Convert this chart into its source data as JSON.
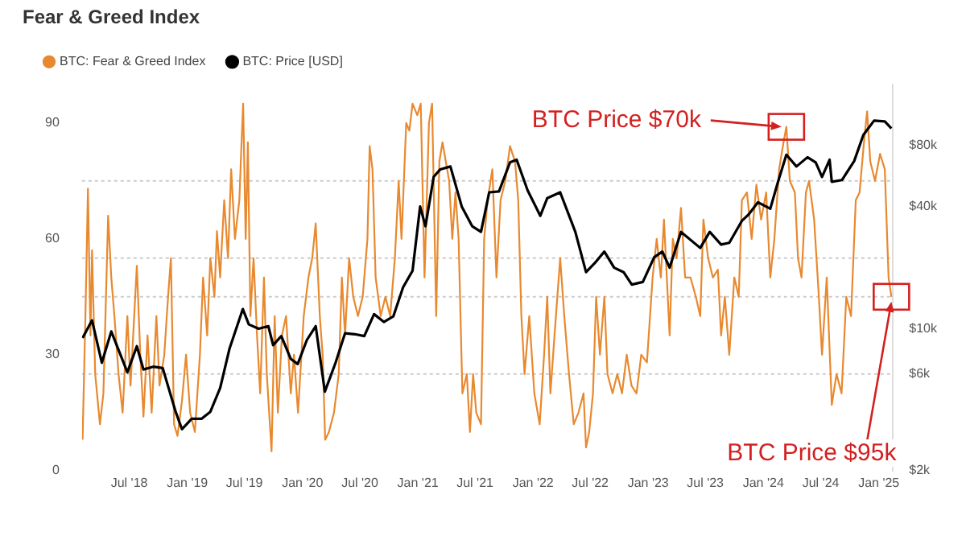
{
  "chart_data": {
    "type": "line",
    "title": "Fear & Greed Index",
    "legend": "top left",
    "marker": "none",
    "log": "y2",
    "grid": false,
    "xlim": [
      "2018-02-01",
      "2025-02-15"
    ],
    "xticks": [
      {
        "value": "2018-07-01",
        "label": "Jul '18"
      },
      {
        "value": "2019-01-01",
        "label": "Jan '19"
      },
      {
        "value": "2019-07-01",
        "label": "Jul '19"
      },
      {
        "value": "2020-01-01",
        "label": "Jan '20"
      },
      {
        "value": "2020-07-01",
        "label": "Jul '20"
      },
      {
        "value": "2021-01-01",
        "label": "Jan '21"
      },
      {
        "value": "2021-07-01",
        "label": "Jul '21"
      },
      {
        "value": "2022-01-01",
        "label": "Jan '22"
      },
      {
        "value": "2022-07-01",
        "label": "Jul '22"
      },
      {
        "value": "2023-01-01",
        "label": "Jan '23"
      },
      {
        "value": "2023-07-01",
        "label": "Jul '23"
      },
      {
        "value": "2024-01-01",
        "label": "Jan '24"
      },
      {
        "value": "2024-07-01",
        "label": "Jul '24"
      },
      {
        "value": "2025-01-01",
        "label": "Jan '25"
      }
    ],
    "ylim": [
      0,
      100
    ],
    "yticks": [
      0,
      30,
      60,
      90
    ],
    "y2lim": [
      2000,
      160000
    ],
    "y2ticks": [
      {
        "value": 2000,
        "label": "$2k"
      },
      {
        "value": 6000,
        "label": "$6k"
      },
      {
        "value": 10000,
        "label": "$10k"
      },
      {
        "value": 40000,
        "label": "$40k"
      },
      {
        "value": 80000,
        "label": "$80k"
      }
    ],
    "ref_lines": [
      {
        "axis": "y",
        "value": 25,
        "color": "#cccccc",
        "line_style": "dotted"
      },
      {
        "axis": "y",
        "value": 45,
        "color": "#cccccc",
        "line_style": "dotted"
      },
      {
        "axis": "y",
        "value": 55,
        "color": "#cccccc",
        "line_style": "dotted"
      },
      {
        "axis": "y",
        "value": 75,
        "color": "#cccccc",
        "line_style": "dotted"
      }
    ],
    "annotations": [
      {
        "text": "BTC Price $70k",
        "x": "2024-03-14",
        "y": 89
      },
      {
        "text": "BTC Price $95k",
        "x": "2025-02-10",
        "y": 45
      }
    ],
    "series": [
      {
        "name": "BTC: Fear & Greed Index",
        "color": "#e8892f",
        "x": [
          "2018-02-03",
          "2018-02-12",
          "2018-02-20",
          "2018-02-28",
          "2018-03-05",
          "2018-03-15",
          "2018-03-30",
          "2018-04-10",
          "2018-04-25",
          "2018-05-05",
          "2018-05-15",
          "2018-05-28",
          "2018-06-10",
          "2018-06-25",
          "2018-07-05",
          "2018-07-25",
          "2018-08-05",
          "2018-08-15",
          "2018-08-28",
          "2018-09-10",
          "2018-09-25",
          "2018-10-05",
          "2018-10-20",
          "2018-11-01",
          "2018-11-10",
          "2018-11-20",
          "2018-12-01",
          "2018-12-15",
          "2018-12-28",
          "2019-01-10",
          "2019-01-25",
          "2019-02-10",
          "2019-02-20",
          "2019-03-05",
          "2019-03-15",
          "2019-03-28",
          "2019-04-05",
          "2019-04-15",
          "2019-04-28",
          "2019-05-10",
          "2019-05-20",
          "2019-06-01",
          "2019-06-15",
          "2019-06-22",
          "2019-06-27",
          "2019-07-05",
          "2019-07-12",
          "2019-07-20",
          "2019-07-30",
          "2019-08-10",
          "2019-08-20",
          "2019-09-01",
          "2019-09-10",
          "2019-09-25",
          "2019-10-05",
          "2019-10-15",
          "2019-10-28",
          "2019-11-10",
          "2019-11-25",
          "2019-12-05",
          "2019-12-18",
          "2020-01-05",
          "2020-01-20",
          "2020-02-01",
          "2020-02-12",
          "2020-02-25",
          "2020-03-05",
          "2020-03-13",
          "2020-03-25",
          "2020-04-10",
          "2020-04-25",
          "2020-05-05",
          "2020-05-15",
          "2020-05-28",
          "2020-06-10",
          "2020-06-25",
          "2020-07-10",
          "2020-07-25",
          "2020-08-01",
          "2020-08-10",
          "2020-08-20",
          "2020-09-05",
          "2020-09-20",
          "2020-10-05",
          "2020-10-20",
          "2020-11-01",
          "2020-11-10",
          "2020-11-25",
          "2020-12-05",
          "2020-12-15",
          "2020-12-30",
          "2021-01-10",
          "2021-01-22",
          "2021-02-05",
          "2021-02-15",
          "2021-02-28",
          "2021-03-10",
          "2021-03-20",
          "2021-04-10",
          "2021-04-20",
          "2021-04-30",
          "2021-05-10",
          "2021-05-22",
          "2021-06-05",
          "2021-06-15",
          "2021-06-25",
          "2021-07-05",
          "2021-07-20",
          "2021-07-30",
          "2021-08-10",
          "2021-08-25",
          "2021-09-07",
          "2021-09-20",
          "2021-10-05",
          "2021-10-20",
          "2021-11-05",
          "2021-11-15",
          "2021-11-25",
          "2021-12-05",
          "2021-12-20",
          "2022-01-05",
          "2022-01-22",
          "2022-02-05",
          "2022-02-15",
          "2022-02-25",
          "2022-03-10",
          "2022-03-28",
          "2022-04-10",
          "2022-04-25",
          "2022-05-10",
          "2022-05-25",
          "2022-06-10",
          "2022-06-18",
          "2022-06-28",
          "2022-07-10",
          "2022-07-20",
          "2022-08-01",
          "2022-08-15",
          "2022-08-25",
          "2022-09-10",
          "2022-09-25",
          "2022-10-10",
          "2022-10-25",
          "2022-11-09",
          "2022-11-25",
          "2022-12-10",
          "2022-12-28",
          "2023-01-15",
          "2023-01-28",
          "2023-02-10",
          "2023-02-20",
          "2023-03-10",
          "2023-03-20",
          "2023-04-01",
          "2023-04-15",
          "2023-04-28",
          "2023-05-15",
          "2023-06-01",
          "2023-06-15",
          "2023-06-25",
          "2023-07-10",
          "2023-07-25",
          "2023-08-10",
          "2023-08-20",
          "2023-09-01",
          "2023-09-15",
          "2023-10-01",
          "2023-10-15",
          "2023-10-25",
          "2023-11-10",
          "2023-11-25",
          "2023-12-10",
          "2023-12-25",
          "2024-01-10",
          "2024-01-23",
          "2024-02-05",
          "2024-02-20",
          "2024-03-05",
          "2024-03-14",
          "2024-03-25",
          "2024-04-10",
          "2024-04-20",
          "2024-05-01",
          "2024-05-15",
          "2024-05-25",
          "2024-06-10",
          "2024-06-25",
          "2024-07-05",
          "2024-07-20",
          "2024-08-05",
          "2024-08-20",
          "2024-09-05",
          "2024-09-20",
          "2024-10-05",
          "2024-10-20",
          "2024-11-01",
          "2024-11-15",
          "2024-11-25",
          "2024-12-05",
          "2024-12-20",
          "2025-01-05",
          "2025-01-20",
          "2025-02-01",
          "2025-02-10"
        ],
        "values": [
          8,
          40,
          73,
          35,
          57,
          25,
          12,
          20,
          66,
          50,
          40,
          25,
          15,
          40,
          22,
          53,
          30,
          14,
          35,
          15,
          40,
          22,
          30,
          45,
          55,
          12,
          9,
          18,
          30,
          15,
          10,
          30,
          50,
          35,
          55,
          45,
          62,
          50,
          70,
          55,
          78,
          60,
          70,
          85,
          95,
          60,
          85,
          40,
          55,
          35,
          20,
          50,
          25,
          5,
          40,
          15,
          35,
          40,
          20,
          30,
          15,
          40,
          50,
          55,
          64,
          40,
          30,
          8,
          10,
          15,
          25,
          50,
          35,
          55,
          45,
          40,
          45,
          60,
          84,
          78,
          50,
          40,
          45,
          40,
          55,
          75,
          60,
          90,
          88,
          95,
          92,
          95,
          50,
          90,
          95,
          40,
          80,
          85,
          75,
          60,
          72,
          60,
          20,
          25,
          10,
          25,
          15,
          12,
          60,
          70,
          78,
          50,
          70,
          75,
          84,
          80,
          70,
          40,
          25,
          40,
          20,
          12,
          30,
          45,
          20,
          35,
          55,
          40,
          25,
          12,
          15,
          20,
          6,
          10,
          20,
          45,
          30,
          45,
          25,
          20,
          25,
          20,
          30,
          22,
          20,
          30,
          28,
          50,
          60,
          50,
          65,
          35,
          60,
          55,
          68,
          50,
          50,
          45,
          40,
          65,
          55,
          50,
          52,
          35,
          45,
          30,
          50,
          45,
          70,
          72,
          60,
          74,
          65,
          72,
          50,
          60,
          78,
          85,
          89,
          75,
          72,
          55,
          50,
          72,
          75,
          65,
          45,
          30,
          50,
          17,
          25,
          20,
          45,
          40,
          70,
          72,
          85,
          93,
          80,
          75,
          82,
          78,
          50,
          45
        ]
      },
      {
        "name": "BTC: Price [USD]",
        "axis": "y2",
        "color": "#000000",
        "x": [
          "2018-02-03",
          "2018-03-05",
          "2018-04-05",
          "2018-05-05",
          "2018-06-25",
          "2018-07-25",
          "2018-08-15",
          "2018-09-15",
          "2018-10-15",
          "2018-11-25",
          "2018-12-15",
          "2019-01-15",
          "2019-02-15",
          "2019-03-15",
          "2019-04-15",
          "2019-05-15",
          "2019-06-26",
          "2019-07-15",
          "2019-08-15",
          "2019-09-15",
          "2019-09-30",
          "2019-10-26",
          "2019-11-25",
          "2019-12-17",
          "2020-01-15",
          "2020-02-12",
          "2020-03-12",
          "2020-04-15",
          "2020-05-15",
          "2020-06-15",
          "2020-07-15",
          "2020-08-15",
          "2020-09-15",
          "2020-10-15",
          "2020-11-15",
          "2020-12-15",
          "2021-01-08",
          "2021-01-25",
          "2021-02-20",
          "2021-03-13",
          "2021-04-14",
          "2021-05-20",
          "2021-06-22",
          "2021-07-20",
          "2021-08-15",
          "2021-09-15",
          "2021-10-20",
          "2021-11-10",
          "2021-12-15",
          "2022-01-24",
          "2022-02-15",
          "2022-03-28",
          "2022-05-15",
          "2022-06-18",
          "2022-07-15",
          "2022-08-15",
          "2022-09-15",
          "2022-10-15",
          "2022-11-10",
          "2022-12-15",
          "2023-01-20",
          "2023-02-15",
          "2023-03-10",
          "2023-04-15",
          "2023-06-15",
          "2023-07-15",
          "2023-08-20",
          "2023-09-15",
          "2023-10-25",
          "2023-11-15",
          "2023-12-15",
          "2024-01-23",
          "2024-02-15",
          "2024-03-14",
          "2024-04-15",
          "2024-05-20",
          "2024-06-15",
          "2024-07-05",
          "2024-07-29",
          "2024-08-05",
          "2024-09-06",
          "2024-10-15",
          "2024-11-13",
          "2024-12-17",
          "2025-01-20",
          "2025-02-10"
        ],
        "values": [
          9000,
          11000,
          6800,
          9700,
          6100,
          8200,
          6300,
          6500,
          6400,
          3900,
          3200,
          3600,
          3600,
          3900,
          5100,
          8000,
          12500,
          10500,
          10000,
          10300,
          8300,
          9200,
          7100,
          6700,
          8800,
          10300,
          4900,
          6800,
          9500,
          9400,
          9200,
          11800,
          10800,
          11500,
          16000,
          19300,
          40000,
          32000,
          56000,
          61000,
          63000,
          40000,
          32000,
          30000,
          47000,
          47500,
          66000,
          68000,
          48000,
          36000,
          44000,
          47000,
          30000,
          19000,
          21000,
          24000,
          20000,
          19000,
          16500,
          17000,
          22500,
          24000,
          20000,
          30000,
          25000,
          30000,
          26000,
          26500,
          34000,
          36500,
          42000,
          39000,
          52000,
          72000,
          63000,
          70000,
          66000,
          56000,
          68000,
          53000,
          54000,
          67000,
          90000,
          106000,
          105000,
          97000
        ]
      }
    ]
  }
}
